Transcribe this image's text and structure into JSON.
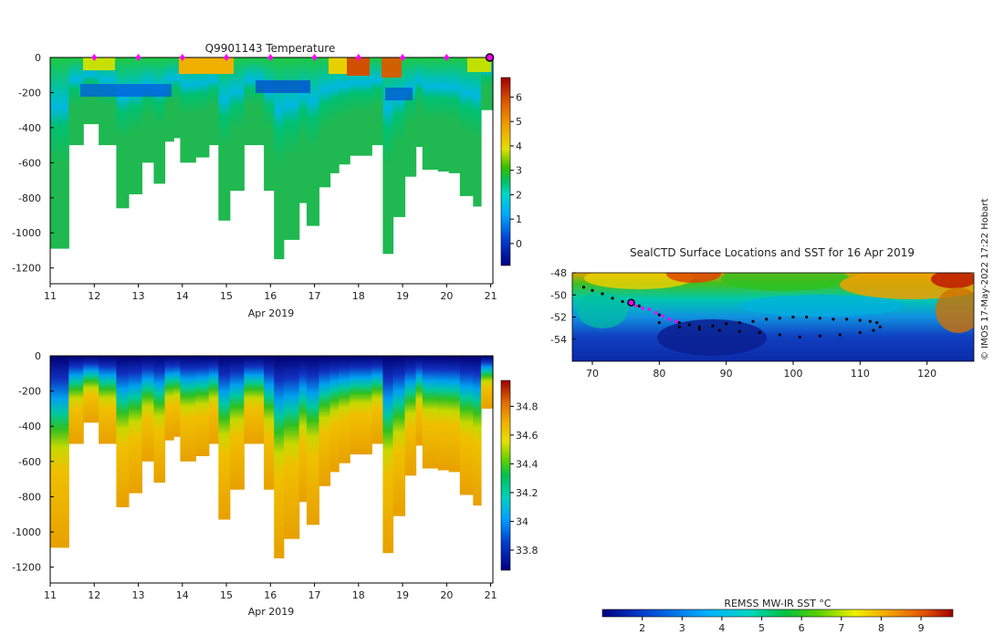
{
  "colors": {
    "ocean_deep": "#1f3fbf",
    "magenta": "#ff00ff",
    "track": "#000000"
  },
  "chart_data": [
    {
      "id": "temperature",
      "type": "heatmap",
      "title": "Q9901143  Temperature",
      "xlabel": "Apr 2019",
      "x_ticks": [
        11,
        12,
        13,
        14,
        15,
        16,
        17,
        18,
        19,
        20,
        21
      ],
      "y_ticks": [
        0,
        -200,
        -400,
        -600,
        -800,
        -1000,
        -1200
      ],
      "xlim": [
        11,
        21.05
      ],
      "ylim": [
        -1290,
        0
      ],
      "colorbar": {
        "min": -0.9,
        "max": 6.8,
        "ticks": [
          0,
          1,
          2,
          3,
          4,
          5,
          6
        ]
      },
      "surface_markers_days": [
        12,
        13,
        14,
        15,
        16,
        17,
        18,
        19,
        20
      ],
      "current_marker_day": 21,
      "profiles": [
        {
          "start": 11.0,
          "end": 11.42,
          "max_depth": -1090
        },
        {
          "start": 11.42,
          "end": 11.75,
          "max_depth": -500
        },
        {
          "start": 11.75,
          "end": 12.1,
          "max_depth": -380
        },
        {
          "start": 12.1,
          "end": 12.5,
          "max_depth": -500
        },
        {
          "start": 12.5,
          "end": 12.78,
          "max_depth": -860
        },
        {
          "start": 12.78,
          "end": 13.08,
          "max_depth": -780
        },
        {
          "start": 13.08,
          "end": 13.35,
          "max_depth": -600
        },
        {
          "start": 13.35,
          "end": 13.6,
          "max_depth": -720
        },
        {
          "start": 13.6,
          "end": 13.8,
          "max_depth": -480
        },
        {
          "start": 13.8,
          "end": 13.95,
          "max_depth": -460
        },
        {
          "start": 13.95,
          "end": 14.3,
          "max_depth": -600
        },
        {
          "start": 14.3,
          "end": 14.6,
          "max_depth": -570
        },
        {
          "start": 14.6,
          "end": 14.82,
          "max_depth": -500
        },
        {
          "start": 14.82,
          "end": 15.08,
          "max_depth": -930
        },
        {
          "start": 15.08,
          "end": 15.4,
          "max_depth": -760
        },
        {
          "start": 15.4,
          "end": 15.85,
          "max_depth": -500
        },
        {
          "start": 15.85,
          "end": 16.08,
          "max_depth": -760
        },
        {
          "start": 16.08,
          "end": 16.3,
          "max_depth": -1150
        },
        {
          "start": 16.3,
          "end": 16.65,
          "max_depth": -1040
        },
        {
          "start": 16.65,
          "end": 16.82,
          "max_depth": -830
        },
        {
          "start": 16.82,
          "end": 17.1,
          "max_depth": -960
        },
        {
          "start": 17.1,
          "end": 17.35,
          "max_depth": -740
        },
        {
          "start": 17.35,
          "end": 17.55,
          "max_depth": -660
        },
        {
          "start": 17.55,
          "end": 17.8,
          "max_depth": -610
        },
        {
          "start": 17.8,
          "end": 18.3,
          "max_depth": -560
        },
        {
          "start": 18.3,
          "end": 18.55,
          "max_depth": -500
        },
        {
          "start": 18.55,
          "end": 18.78,
          "max_depth": -1120
        },
        {
          "start": 18.78,
          "end": 19.05,
          "max_depth": -910
        },
        {
          "start": 19.05,
          "end": 19.3,
          "max_depth": -680
        },
        {
          "start": 19.3,
          "end": 19.45,
          "max_depth": -510
        },
        {
          "start": 19.45,
          "end": 19.8,
          "max_depth": -640
        },
        {
          "start": 19.8,
          "end": 20.05,
          "max_depth": -650
        },
        {
          "start": 20.05,
          "end": 20.3,
          "max_depth": -660
        },
        {
          "start": 20.3,
          "end": 20.6,
          "max_depth": -790
        },
        {
          "start": 20.6,
          "end": 20.78,
          "max_depth": -850
        },
        {
          "start": 20.78,
          "end": 21.05,
          "max_depth": -300
        }
      ]
    },
    {
      "id": "salinity",
      "type": "heatmap",
      "title": "",
      "xlabel": "Apr 2019",
      "x_ticks": [
        11,
        12,
        13,
        14,
        15,
        16,
        17,
        18,
        19,
        20,
        21
      ],
      "y_ticks": [
        0,
        -200,
        -400,
        -600,
        -800,
        -1000,
        -1200
      ],
      "xlim": [
        11,
        21.05
      ],
      "ylim": [
        -1290,
        0
      ],
      "colorbar": {
        "min": 33.66,
        "max": 34.98,
        "ticks": [
          33.8,
          34,
          34.2,
          34.4,
          34.6,
          34.8
        ]
      }
    },
    {
      "id": "sst_map",
      "type": "heatmap",
      "title": "SealCTD Surface Locations and SST for 16 Apr 2019",
      "x_ticks": [
        70,
        80,
        90,
        100,
        110,
        120
      ],
      "y_ticks": [
        -48,
        -50,
        -52,
        -54
      ],
      "xlim": [
        67,
        127
      ],
      "ylim": [
        -56,
        -48
      ],
      "track": [
        [
          68.7,
          -49.3
        ],
        [
          70,
          -49.6
        ],
        [
          71.5,
          -49.9
        ],
        [
          73,
          -50.3
        ],
        [
          74.5,
          -50.6
        ],
        [
          75.8,
          -50.7
        ],
        [
          77,
          -51.0
        ],
        [
          78.5,
          -51.3
        ],
        [
          80,
          -51.8
        ],
        [
          81.5,
          -52.2
        ],
        [
          83,
          -52.5
        ],
        [
          84.5,
          -52.7
        ],
        [
          86,
          -52.9
        ],
        [
          88,
          -52.8
        ],
        [
          90,
          -52.6
        ],
        [
          92,
          -52.5
        ],
        [
          94,
          -52.4
        ],
        [
          96,
          -52.2
        ],
        [
          98,
          -52.1
        ],
        [
          100,
          -52.0
        ],
        [
          102,
          -52.0
        ],
        [
          104,
          -52.1
        ],
        [
          106,
          -52.2
        ],
        [
          108,
          -52.2
        ],
        [
          110,
          -52.3
        ],
        [
          111.5,
          -52.4
        ],
        [
          112.5,
          -52.5
        ],
        [
          113,
          -52.9
        ],
        [
          112,
          -53.2
        ],
        [
          110,
          -53.4
        ],
        [
          107,
          -53.6
        ],
        [
          104,
          -53.7
        ],
        [
          101,
          -53.8
        ],
        [
          98,
          -53.6
        ],
        [
          95,
          -53.4
        ],
        [
          92,
          -53.3
        ],
        [
          89,
          -53.2
        ],
        [
          86,
          -53.1
        ],
        [
          83,
          -52.9
        ],
        [
          80,
          -52.5
        ]
      ],
      "recent_track": [
        [
          76.5,
          -51.0
        ],
        [
          77.5,
          -51.2
        ],
        [
          78.5,
          -51.3
        ],
        [
          79.5,
          -51.6
        ],
        [
          80.5,
          -51.9
        ],
        [
          81.5,
          -52.2
        ],
        [
          82.5,
          -52.4
        ]
      ],
      "current_position": [
        75.8,
        -50.7
      ]
    }
  ],
  "sst_colorbar": {
    "label": "REMSS MW-IR SST °C",
    "min": 1.0,
    "max": 9.8,
    "ticks": [
      2,
      3,
      4,
      5,
      6,
      7,
      8,
      9
    ]
  },
  "credit": "© IMOS 17-May-2022 17:22 Hobart"
}
